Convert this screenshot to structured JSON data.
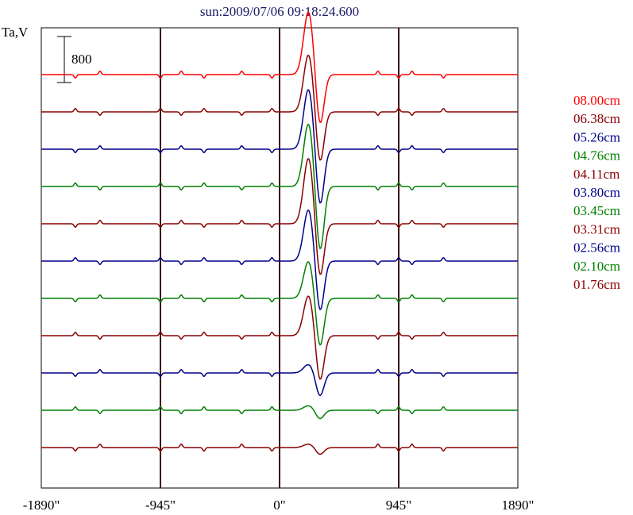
{
  "chart_data": {
    "type": "line",
    "title": "sun:2009/07/06 09:18:24.600",
    "ylabel": "Ta,V",
    "xlabel": "",
    "scale_bar": {
      "label": "800",
      "value": 800
    },
    "x_ticks": [
      -1890,
      -945,
      0,
      945,
      1890
    ],
    "x_tick_labels": [
      "-1890\"",
      "-945\"",
      "0\"",
      "945\"",
      "1890\""
    ],
    "xlim": [
      -1890,
      1890
    ],
    "vlines": [
      -945,
      0,
      945
    ],
    "grid": false,
    "legend_placement": "right",
    "colors": {
      "red": "#ff0000",
      "darkred": "#8b0000",
      "blue": "#00008b",
      "green": "#008000",
      "frame": "#000000",
      "vline": "#3a1010",
      "title": "#1a1a66"
    },
    "series": [
      {
        "name": "08.00cm",
        "color": "#ff0000",
        "peak": 1100,
        "trough": -900
      },
      {
        "name": "06.38cm",
        "color": "#8b0000",
        "peak": 1000,
        "trough": -900
      },
      {
        "name": "05.26cm",
        "color": "#00008b",
        "peak": 1050,
        "trough": -1000
      },
      {
        "name": "04.76cm",
        "color": "#008000",
        "peak": 1100,
        "trough": -1150
      },
      {
        "name": "04.11cm",
        "color": "#8b0000",
        "peak": 1150,
        "trough": -950
      },
      {
        "name": "03.80cm",
        "color": "#00008b",
        "peak": 900,
        "trough": -900
      },
      {
        "name": "03.45cm",
        "color": "#008000",
        "peak": 650,
        "trough": -850
      },
      {
        "name": "03.31cm",
        "color": "#8b0000",
        "peak": 700,
        "trough": -800
      },
      {
        "name": "02.56cm",
        "color": "#00008b",
        "peak": 150,
        "trough": -400
      },
      {
        "name": "02.10cm",
        "color": "#008000",
        "peak": 80,
        "trough": -150
      },
      {
        "name": "01.76cm",
        "color": "#8b0000",
        "peak": 60,
        "trough": -120
      }
    ]
  }
}
